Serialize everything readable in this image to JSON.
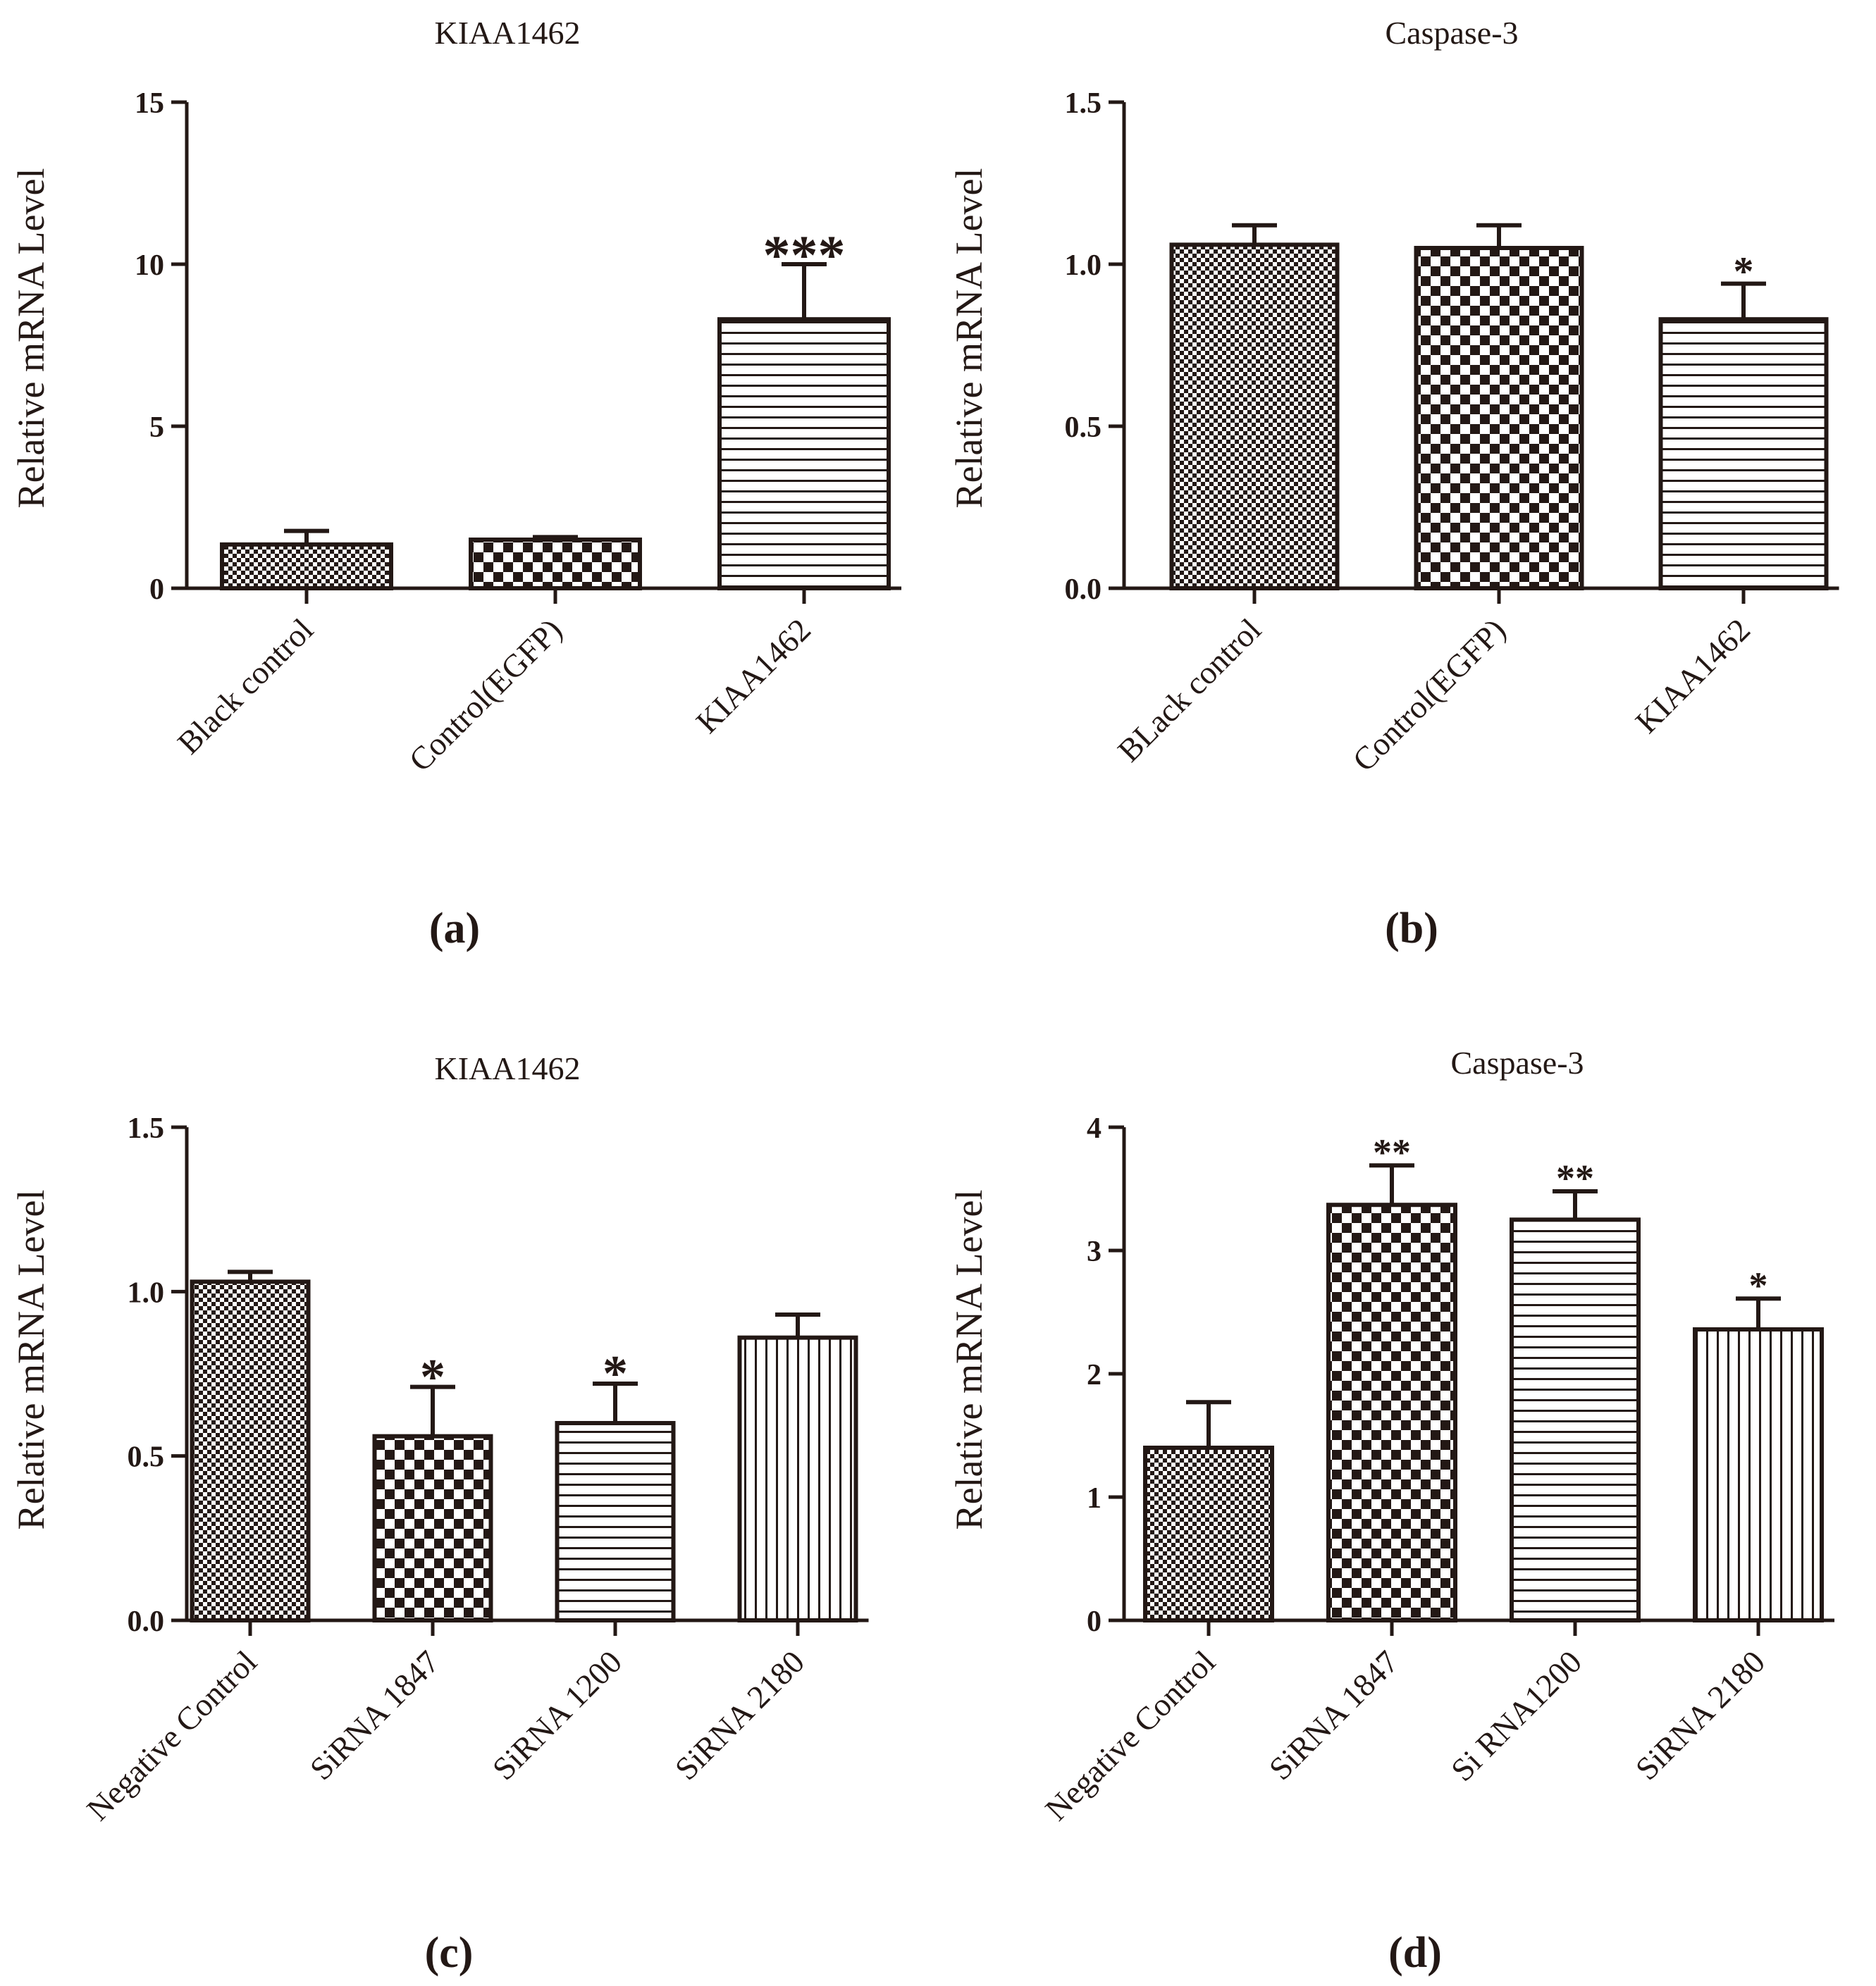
{
  "chart_data": [
    {
      "panel": "(a)",
      "type": "bar",
      "title": "KIAA1462",
      "ylabel": "Relative mRNA Level",
      "xlabel": "",
      "ylim": [
        0,
        15
      ],
      "yticks": [
        0,
        5,
        10,
        15
      ],
      "ytick_labels": [
        "0",
        "5",
        "10",
        "15"
      ],
      "grid": false,
      "categories": [
        "Black control",
        "Control(EGFP)",
        "KIAA1462"
      ],
      "values": [
        1.35,
        1.5,
        8.3
      ],
      "errors": [
        0.42,
        0.08,
        1.7
      ],
      "patterns": [
        "fine-check",
        "check",
        "hlines"
      ],
      "significance": [
        "",
        "",
        "***"
      ]
    },
    {
      "panel": "(b)",
      "type": "bar",
      "title": "Caspase-3",
      "ylabel": "Relative mRNA Level",
      "xlabel": "",
      "ylim": [
        0,
        1.5
      ],
      "yticks": [
        0,
        0.5,
        1.0,
        1.5
      ],
      "ytick_labels": [
        "0.0",
        "0.5",
        "1.0",
        "1.5"
      ],
      "grid": false,
      "categories": [
        "BLack control",
        "Control(EGFP)",
        "KIAA1462"
      ],
      "values": [
        1.06,
        1.05,
        0.83
      ],
      "errors": [
        0.06,
        0.07,
        0.11
      ],
      "patterns": [
        "fine-check",
        "check",
        "hlines"
      ],
      "significance": [
        "",
        "",
        "*"
      ]
    },
    {
      "panel": "(c)",
      "type": "bar",
      "title": "KIAA1462",
      "ylabel": "Relative mRNA Level",
      "xlabel": "",
      "ylim": [
        0,
        1.5
      ],
      "yticks": [
        0,
        0.5,
        1.0,
        1.5
      ],
      "ytick_labels": [
        "0.0",
        "0.5",
        "1.0",
        "1.5"
      ],
      "grid": false,
      "categories": [
        "Negative Control",
        "SiRNA 1847",
        "SiRNA 1200",
        "SiRNA 2180"
      ],
      "values": [
        1.03,
        0.56,
        0.6,
        0.86
      ],
      "errors": [
        0.03,
        0.15,
        0.12,
        0.07
      ],
      "patterns": [
        "fine-check",
        "check",
        "hlines",
        "vlines"
      ],
      "significance": [
        "",
        "*",
        "*",
        ""
      ]
    },
    {
      "panel": "(d)",
      "type": "bar",
      "title": "Caspase-3",
      "ylabel": "Relative mRNA Level",
      "xlabel": "",
      "ylim": [
        0,
        4
      ],
      "yticks": [
        0,
        1,
        2,
        3,
        4
      ],
      "ytick_labels": [
        "0",
        "1",
        "2",
        "3",
        "4"
      ],
      "grid": false,
      "categories": [
        "Negative Control",
        "SiRNA 1847",
        "Si RNA1200",
        "SiRNA 2180"
      ],
      "values": [
        1.4,
        3.37,
        3.25,
        2.36
      ],
      "errors": [
        0.37,
        0.32,
        0.23,
        0.25
      ],
      "patterns": [
        "fine-check",
        "check",
        "hlines",
        "vlines"
      ],
      "significance": [
        "",
        "**",
        "**",
        "*"
      ]
    }
  ],
  "colors": {
    "ink": "#231815",
    "background": "#ffffff"
  }
}
